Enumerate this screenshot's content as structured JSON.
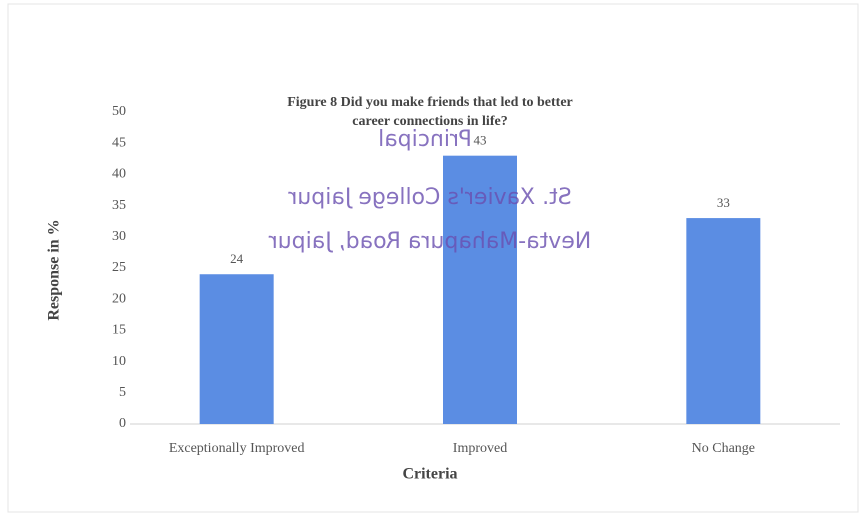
{
  "chart_data": {
    "type": "bar",
    "title": [
      "Figure 8 Did you make friends that led to better",
      "career connections in life?"
    ],
    "x_label": "Criteria",
    "y_label": "Response in %",
    "categories": [
      "Exceptionally Improved",
      "Improved",
      "No Change"
    ],
    "values": [
      24,
      43,
      33
    ],
    "color": "#5b8de3",
    "ylim": [
      0,
      50
    ],
    "yticks": [
      0,
      5,
      10,
      15,
      20,
      25,
      30,
      35,
      40,
      45,
      50
    ],
    "grid": false,
    "stamp": [
      "Principal",
      "St. Xavier's College Jaipur",
      "Nevta-Mahapura Road, Jaipur"
    ]
  }
}
